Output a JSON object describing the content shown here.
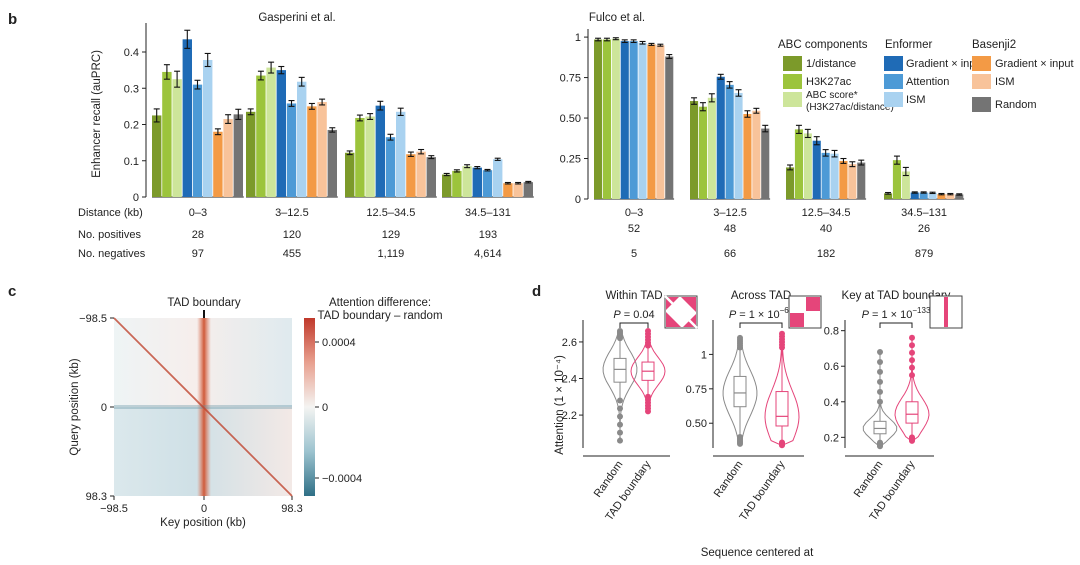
{
  "panels": {
    "b": "b",
    "c": "c",
    "d": "d"
  },
  "colors": {
    "green1": "#7c9a2a",
    "green2": "#9cc43c",
    "green3": "#cde59a",
    "blue1": "#1f6bb6",
    "blue2": "#4d9ad6",
    "blue3": "#a9d2f0",
    "orange1": "#f39a45",
    "orange2": "#f8c39a",
    "grey": "#747474",
    "pink": "#e5457a",
    "greyline": "#8a8a8a",
    "red": "#c0392b",
    "teal": "#2f6f86"
  },
  "chart_data": [
    {
      "id": "gasperini",
      "type": "bar",
      "title": "Gasperini et al.",
      "ylabel": "Enhancer recall (auPRC)",
      "ylim": [
        0,
        0.48
      ],
      "yticks": [
        "0",
        "0.1",
        "0.2",
        "0.3",
        "0.4"
      ],
      "groups": [
        "0–3",
        "3–12.5",
        "12.5–34.5",
        "34.5–131"
      ],
      "series": [
        {
          "name": "1/distance",
          "values": [
            0.225,
            0.235,
            0.122,
            0.062
          ]
        },
        {
          "name": "H3K27ac",
          "values": [
            0.345,
            0.335,
            0.218,
            0.072
          ]
        },
        {
          "name": "ABC score",
          "values": [
            0.325,
            0.357,
            0.222,
            0.085
          ]
        },
        {
          "name": "Enformer Gradient × input",
          "values": [
            0.435,
            0.35,
            0.252,
            0.081
          ]
        },
        {
          "name": "Enformer Attention",
          "values": [
            0.31,
            0.258,
            0.165,
            0.074
          ]
        },
        {
          "name": "Enformer ISM",
          "values": [
            0.378,
            0.318,
            0.235,
            0.104
          ]
        },
        {
          "name": "Basenji2 Gradient × input",
          "values": [
            0.18,
            0.25,
            0.118,
            0.038
          ]
        },
        {
          "name": "Basenji2 ISM",
          "values": [
            0.215,
            0.262,
            0.125,
            0.038
          ]
        },
        {
          "name": "Random",
          "values": [
            0.228,
            0.185,
            0.11,
            0.041
          ]
        }
      ],
      "errors": [
        [
          0.018,
          0.008,
          0.005,
          0.003
        ],
        [
          0.02,
          0.012,
          0.008,
          0.003
        ],
        [
          0.022,
          0.015,
          0.008,
          0.004
        ],
        [
          0.025,
          0.01,
          0.012,
          0.003
        ],
        [
          0.012,
          0.008,
          0.008,
          0.002
        ],
        [
          0.018,
          0.012,
          0.01,
          0.003
        ],
        [
          0.008,
          0.008,
          0.006,
          0.002
        ],
        [
          0.012,
          0.008,
          0.006,
          0.002
        ],
        [
          0.014,
          0.006,
          0.004,
          0.002
        ]
      ]
    },
    {
      "id": "fulco",
      "type": "bar",
      "title": "Fulco et al.",
      "ylim": [
        0,
        1.05
      ],
      "yticks": [
        "0",
        "0.25",
        "0.50",
        "0.75",
        "1"
      ],
      "groups": [
        "0–3",
        "3–12.5",
        "12.5–34.5",
        "34.5–131"
      ],
      "series": [
        {
          "name": "1/distance",
          "values": [
            0.985,
            0.605,
            0.195,
            0.035
          ]
        },
        {
          "name": "H3K27ac",
          "values": [
            0.985,
            0.57,
            0.43,
            0.24
          ]
        },
        {
          "name": "ABC score",
          "values": [
            0.99,
            0.625,
            0.405,
            0.17
          ]
        },
        {
          "name": "Enformer Gradient × input",
          "values": [
            0.975,
            0.755,
            0.36,
            0.04
          ]
        },
        {
          "name": "Enformer Attention",
          "values": [
            0.975,
            0.705,
            0.285,
            0.04
          ]
        },
        {
          "name": "Enformer ISM",
          "values": [
            0.965,
            0.655,
            0.28,
            0.038
          ]
        },
        {
          "name": "Basenji2 Gradient × input",
          "values": [
            0.955,
            0.525,
            0.235,
            0.03
          ]
        },
        {
          "name": "Basenji2 ISM",
          "values": [
            0.95,
            0.545,
            0.215,
            0.03
          ]
        },
        {
          "name": "Random",
          "values": [
            0.88,
            0.435,
            0.225,
            0.028
          ]
        }
      ],
      "errors": [
        [
          0.008,
          0.02,
          0.015,
          0.005
        ],
        [
          0.008,
          0.025,
          0.025,
          0.025
        ],
        [
          0.006,
          0.025,
          0.025,
          0.025
        ],
        [
          0.008,
          0.015,
          0.025,
          0.004
        ],
        [
          0.008,
          0.02,
          0.02,
          0.004
        ],
        [
          0.008,
          0.02,
          0.02,
          0.004
        ],
        [
          0.006,
          0.02,
          0.015,
          0.004
        ],
        [
          0.006,
          0.015,
          0.015,
          0.004
        ],
        [
          0.012,
          0.02,
          0.015,
          0.004
        ]
      ]
    },
    {
      "id": "heatmap",
      "type": "heatmap",
      "title": "TAD boundary",
      "xlabel": "Key position (kb)",
      "ylabel": "Query position (kb)",
      "xticks": [
        "−98.5",
        "0",
        "98.3"
      ],
      "yticks": [
        "−98.5",
        "0",
        "98.3"
      ],
      "colorbar_title": [
        "Attention difference:",
        "TAD boundary – random"
      ],
      "colorbar_ticks": [
        "0.0004",
        "0",
        "−0.0004"
      ],
      "clim": [
        -0.0006,
        0.0006
      ]
    },
    {
      "id": "violins",
      "type": "violin",
      "ylabel": "Attention (1 × 10⁻⁴)",
      "xlabel": "Sequence centered at",
      "categories": [
        "Random",
        "TAD boundary"
      ],
      "subplots": [
        {
          "title": "Within TAD",
          "pvalue": "0.04",
          "ylim": [
            2.02,
            2.72
          ],
          "yticks": [
            "2.2",
            "2.4",
            "2.6"
          ],
          "random": {
            "median": 2.45,
            "q1": 2.38,
            "q3": 2.51,
            "wlo": 2.28,
            "whi": 2.62,
            "min": 2.06,
            "max": 2.66
          },
          "tad": {
            "median": 2.44,
            "q1": 2.39,
            "q3": 2.49,
            "wlo": 2.3,
            "whi": 2.58,
            "min": 2.22,
            "max": 2.66
          }
        },
        {
          "title": "Across TAD",
          "pvalue": "1 × 10",
          "pexp": "−60",
          "ylim": [
            0.32,
            1.25
          ],
          "yticks": [
            "0.50",
            "0.75",
            "1"
          ],
          "random": {
            "median": 0.72,
            "q1": 0.62,
            "q3": 0.84,
            "wlo": 0.4,
            "whi": 1.05,
            "min": 0.35,
            "max": 1.12
          },
          "tad": {
            "median": 0.55,
            "q1": 0.48,
            "q3": 0.73,
            "wlo": 0.36,
            "whi": 1.05,
            "min": 0.34,
            "max": 1.15
          }
        },
        {
          "title": "Key at TAD boundary",
          "pvalue": "1 × 10",
          "pexp": "−133",
          "ylim": [
            0.14,
            0.86
          ],
          "yticks": [
            "0.2",
            "0.4",
            "0.6",
            "0.8"
          ],
          "random": {
            "median": 0.25,
            "q1": 0.22,
            "q3": 0.29,
            "wlo": 0.17,
            "whi": 0.4,
            "min": 0.15,
            "max": 0.68
          },
          "tad": {
            "median": 0.33,
            "q1": 0.28,
            "q3": 0.4,
            "wlo": 0.2,
            "whi": 0.55,
            "min": 0.18,
            "max": 0.76
          }
        }
      ]
    }
  ],
  "legend": {
    "abc_title": "ABC components",
    "enf_title": "Enformer",
    "bas_title": "Basenji2",
    "abc_items": [
      "1/distance",
      "H3K27ac",
      "ABC score*",
      "(H3K27ac/distance)"
    ],
    "enf_items": [
      "Gradient × input",
      "Attention",
      "ISM"
    ],
    "bas_items": [
      "Gradient × input",
      "ISM",
      "Random"
    ]
  },
  "table": {
    "row_labels": [
      "Distance (kb)",
      "No. positives",
      "No. negatives"
    ],
    "left_positives": [
      "28",
      "120",
      "129",
      "193"
    ],
    "left_negatives": [
      "97",
      "455",
      "1,119",
      "4,614"
    ],
    "right_positives": [
      "52",
      "48",
      "40",
      "26"
    ],
    "right_negatives": [
      "5",
      "66",
      "182",
      "879"
    ]
  }
}
